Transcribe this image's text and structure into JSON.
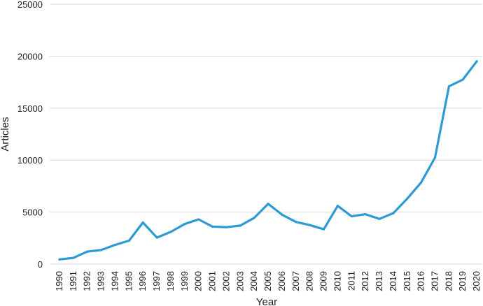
{
  "chart_data": {
    "type": "line",
    "xlabel": "Year",
    "ylabel": "Articles",
    "ylim": [
      0,
      25000
    ],
    "y_ticks": [
      0,
      5000,
      10000,
      15000,
      20000,
      25000
    ],
    "grid": "horizontal",
    "legend": "none",
    "categories": [
      "1990",
      "1991",
      "1992",
      "1993",
      "1994",
      "1995",
      "1996",
      "1997",
      "1998",
      "1999",
      "2000",
      "2001",
      "2002",
      "2003",
      "2004",
      "2005",
      "2006",
      "2007",
      "2008",
      "2009",
      "2010",
      "2011",
      "2012",
      "2013",
      "2014",
      "2015",
      "2016",
      "2017",
      "2018",
      "2019",
      "2020"
    ],
    "series": [
      {
        "values": [
          450,
          600,
          1200,
          1350,
          1850,
          2250,
          4000,
          2550,
          3100,
          3850,
          4300,
          3600,
          3550,
          3700,
          4450,
          5800,
          4750,
          4050,
          3750,
          3350,
          5600,
          4600,
          4800,
          4350,
          4900,
          6300,
          7850,
          10250,
          17100,
          17750,
          19500
        ],
        "color": "#2e9ad4"
      }
    ]
  }
}
